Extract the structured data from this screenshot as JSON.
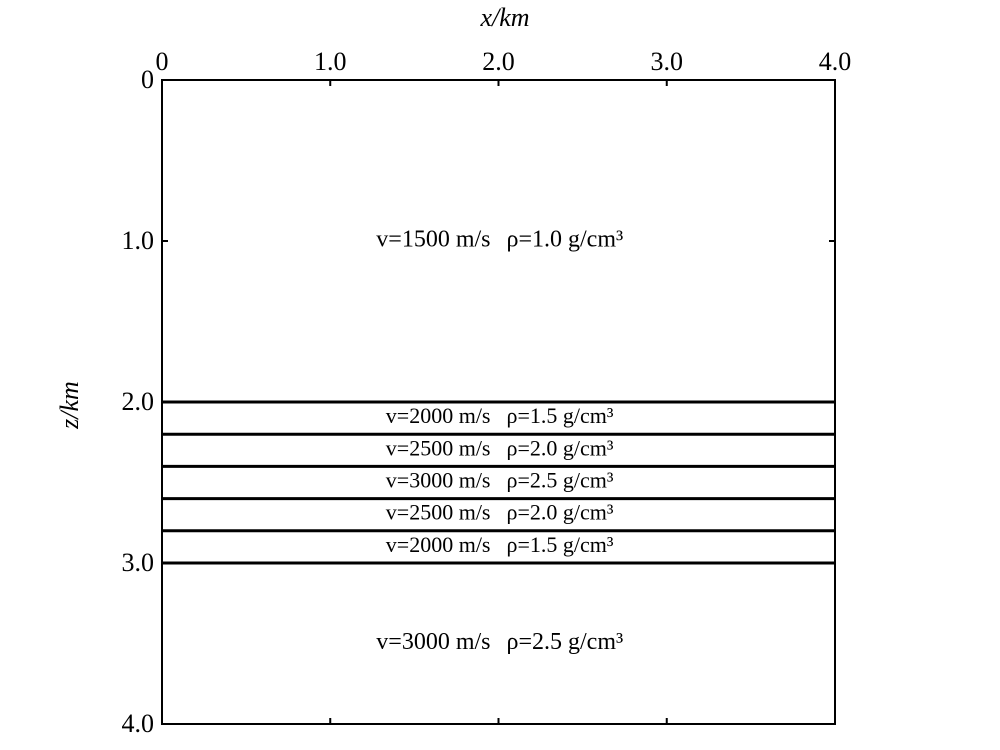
{
  "axes": {
    "x_label": "x/km",
    "z_label": "z/km",
    "xlim": [
      0,
      4
    ],
    "zlim": [
      0,
      4
    ],
    "xticks": [
      0,
      {
        "value": 1,
        "label": "1.0"
      },
      {
        "value": 2,
        "label": "2.0"
      },
      {
        "value": 3,
        "label": "3.0"
      },
      {
        "value": 4,
        "label": "4.0"
      }
    ],
    "zticks": [
      0,
      {
        "value": 1,
        "label": "1.0"
      },
      {
        "value": 2,
        "label": "2.0"
      },
      {
        "value": 3,
        "label": "3.0"
      },
      {
        "value": 4,
        "label": "4.0"
      }
    ]
  },
  "boundaries": [
    2.0,
    2.2,
    2.4,
    2.6,
    2.8,
    3.0
  ],
  "layers": [
    {
      "velocity": "v=1500 m/s",
      "density": "ρ=1.0 g/cm³"
    },
    {
      "velocity": "v=2000 m/s",
      "density": "ρ=1.5 g/cm³"
    },
    {
      "velocity": "v=2500 m/s",
      "density": "ρ=2.0 g/cm³"
    },
    {
      "velocity": "v=3000 m/s",
      "density": "ρ=2.5 g/cm³"
    },
    {
      "velocity": "v=2500 m/s",
      "density": "ρ=2.0 g/cm³"
    },
    {
      "velocity": "v=2000 m/s",
      "density": "ρ=1.5 g/cm³"
    },
    {
      "velocity": "v=3000 m/s",
      "density": "ρ=2.5 g/cm³"
    }
  ]
}
